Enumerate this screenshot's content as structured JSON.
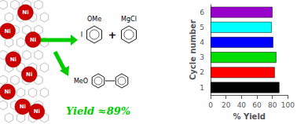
{
  "chart_data": {
    "type": "bar",
    "orientation": "horizontal",
    "categories": [
      "1",
      "2",
      "3",
      "4",
      "5",
      "6"
    ],
    "values": [
      89,
      83,
      85,
      81,
      79,
      80
    ],
    "colors": [
      "#000000",
      "#ff0000",
      "#00dd00",
      "#0000ff",
      "#00ffff",
      "#9900cc"
    ],
    "xlabel": "% Yield",
    "ylabel": "Cycle number",
    "xlim": [
      0,
      100
    ],
    "xticks": [
      0,
      20,
      40,
      60,
      80,
      100
    ],
    "grid": false,
    "annotations": [
      "Ni",
      "Ni",
      "Ni",
      "Ni",
      "Ni",
      "Ni",
      "Ni",
      "Ni",
      "OMe",
      "I",
      "+",
      "MgCl",
      "MeO",
      "Yield ≈89%"
    ]
  }
}
